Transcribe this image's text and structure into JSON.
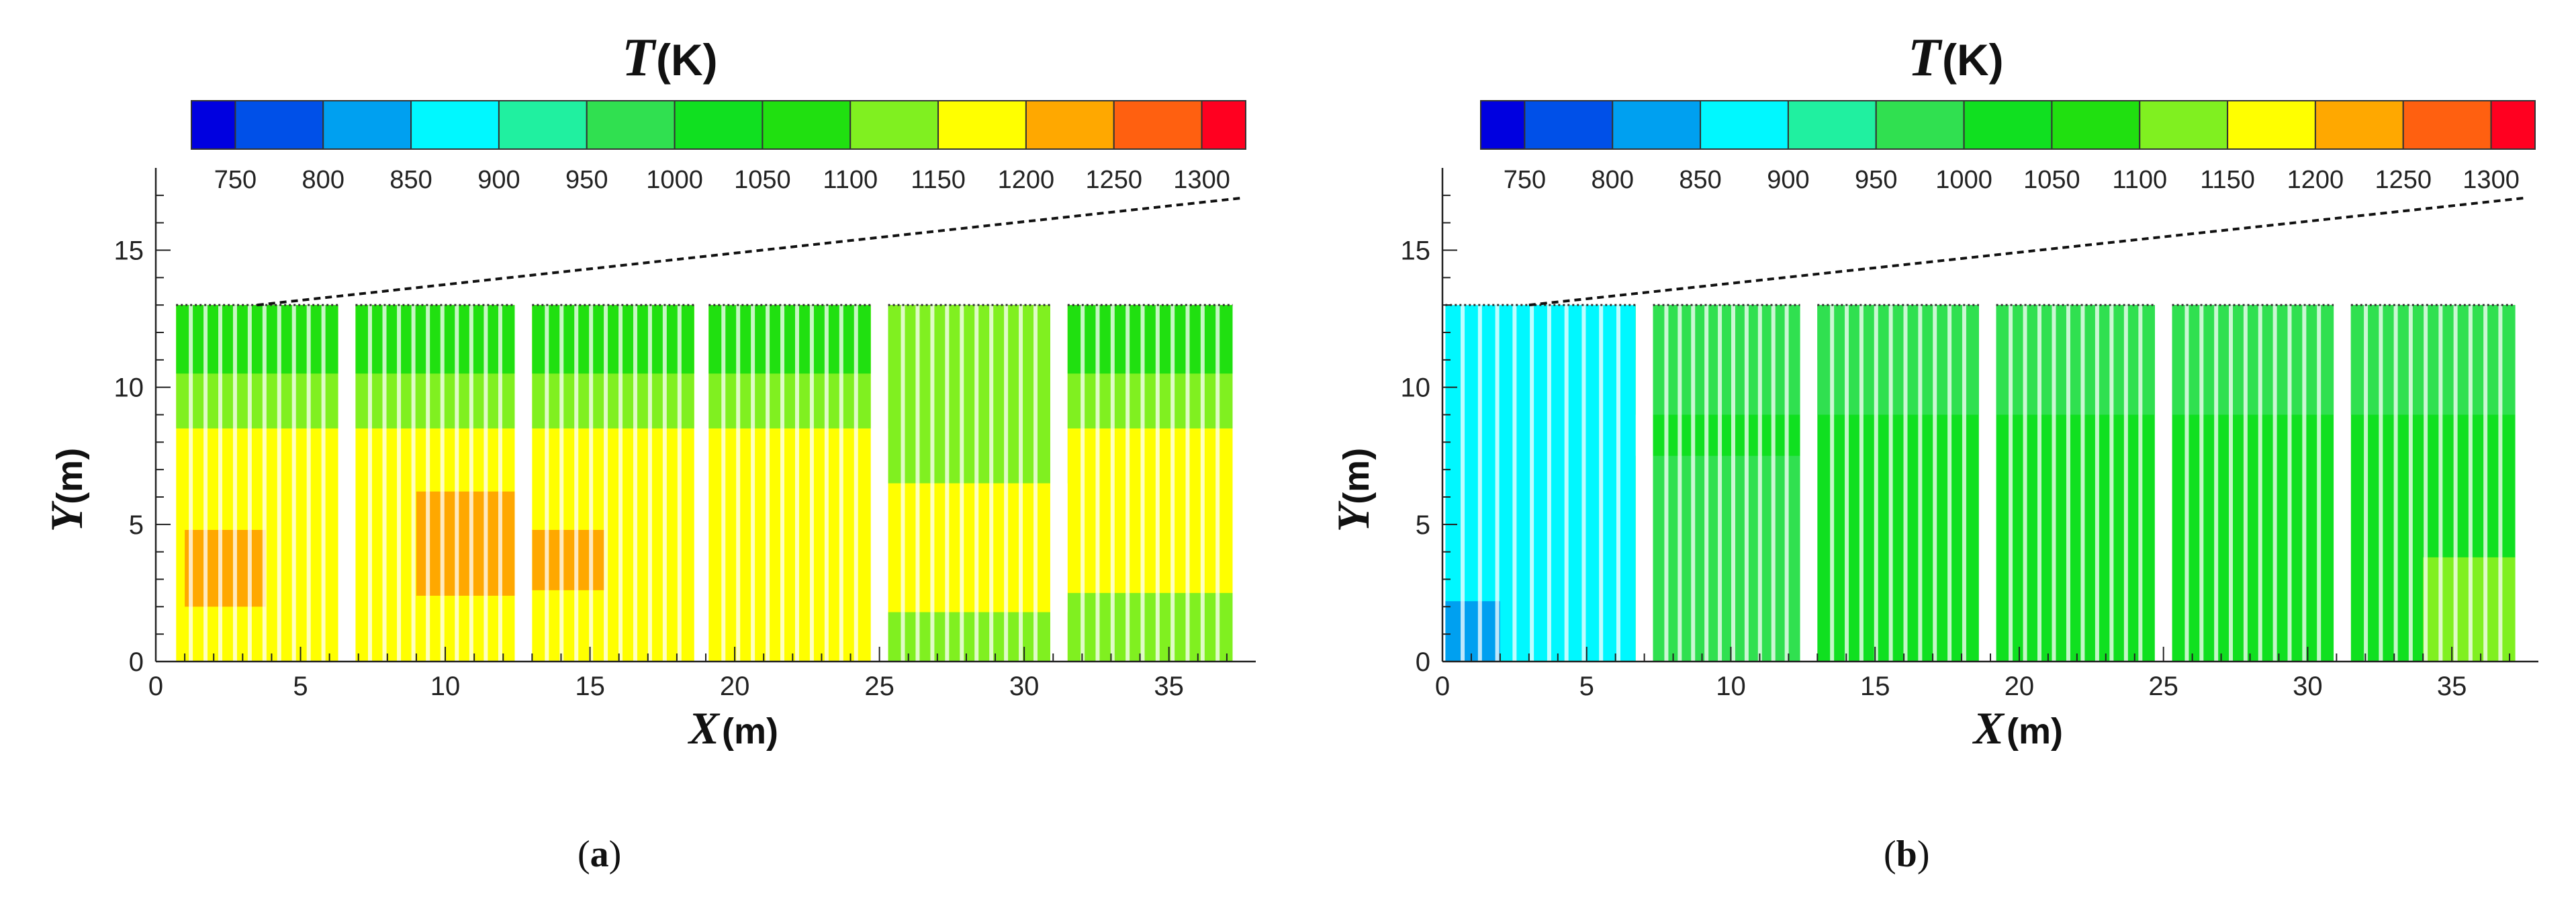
{
  "chart_data": [
    {
      "type": "heatmap",
      "panel_label": "a",
      "colorbar": {
        "title": "T",
        "unit": "(K)",
        "ticks": [
          "750",
          "800",
          "850",
          "900",
          "950",
          "1000",
          "1050",
          "1100",
          "1150",
          "1200",
          "1250",
          "1300"
        ],
        "bands": [
          {
            "min": 700,
            "max": 725,
            "color": "#0000e0"
          },
          {
            "min": 725,
            "max": 775,
            "color": "#0050e8"
          },
          {
            "min": 775,
            "max": 825,
            "color": "#00a0f0"
          },
          {
            "min": 825,
            "max": 875,
            "color": "#00f8ff"
          },
          {
            "min": 875,
            "max": 925,
            "color": "#20f0a0"
          },
          {
            "min": 925,
            "max": 975,
            "color": "#30e050"
          },
          {
            "min": 975,
            "max": 1025,
            "color": "#10e020"
          },
          {
            "min": 1025,
            "max": 1075,
            "color": "#20e010"
          },
          {
            "min": 1075,
            "max": 1125,
            "color": "#80f020"
          },
          {
            "min": 1125,
            "max": 1175,
            "color": "#ffff00"
          },
          {
            "min": 1175,
            "max": 1225,
            "color": "#ffa800"
          },
          {
            "min": 1225,
            "max": 1275,
            "color": "#ff6010"
          },
          {
            "min": 1275,
            "max": 1300,
            "color": "#ff0020"
          }
        ]
      },
      "x_axis": {
        "var": "X",
        "unit": "(m)",
        "range": [
          0,
          38
        ],
        "ticks": [
          "0",
          "5",
          "10",
          "15",
          "20",
          "25",
          "30",
          "35"
        ]
      },
      "y_axis": {
        "var": "Y",
        "unit": "(m)",
        "range": [
          0,
          18
        ],
        "ticks": [
          "0",
          "5",
          "10",
          "15"
        ]
      },
      "rack_segments_x": [
        [
          0.7,
          6.3
        ],
        [
          6.9,
          12.4
        ],
        [
          13.0,
          18.6
        ],
        [
          19.1,
          24.7
        ],
        [
          25.3,
          30.9
        ],
        [
          31.5,
          37.2
        ]
      ],
      "rack_top_y": 13,
      "roof_line": {
        "x": [
          3.5,
          37.5
        ],
        "y": [
          13.0,
          16.9
        ]
      },
      "zones": [
        {
          "x_range": [
            0.7,
            37.2
          ],
          "y_range": [
            0,
            13
          ],
          "temp": 1160
        },
        {
          "x_range": [
            0.7,
            37.2
          ],
          "y_range": [
            8.5,
            13
          ],
          "temp": 1100
        },
        {
          "x_range": [
            0.7,
            37.2
          ],
          "y_range": [
            10.5,
            13
          ],
          "temp": 1060
        },
        {
          "x_range": [
            25.3,
            31.5
          ],
          "y_range": [
            6.5,
            13
          ],
          "temp": 1075
        },
        {
          "x_range": [
            25.3,
            31.5
          ],
          "y_range": [
            0,
            1.8
          ],
          "temp": 1100
        },
        {
          "x_range": [
            31.5,
            37.2
          ],
          "y_range": [
            0,
            2.5
          ],
          "temp": 1120
        },
        {
          "x_range": [
            1.0,
            3.8
          ],
          "y_range": [
            2.0,
            4.8
          ],
          "temp": 1200
        },
        {
          "x_range": [
            9.0,
            12.5
          ],
          "y_range": [
            2.4,
            6.2
          ],
          "temp": 1200
        },
        {
          "x_range": [
            13.0,
            15.5
          ],
          "y_range": [
            2.6,
            4.8
          ],
          "temp": 1200
        }
      ]
    },
    {
      "type": "heatmap",
      "panel_label": "b",
      "colorbar": {
        "title": "T",
        "unit": "(K)",
        "ticks": [
          "750",
          "800",
          "850",
          "900",
          "950",
          "1000",
          "1050",
          "1100",
          "1150",
          "1200",
          "1250",
          "1300"
        ],
        "bands": [
          {
            "min": 700,
            "max": 725,
            "color": "#0000e0"
          },
          {
            "min": 725,
            "max": 775,
            "color": "#0050e8"
          },
          {
            "min": 775,
            "max": 825,
            "color": "#00a0f0"
          },
          {
            "min": 825,
            "max": 875,
            "color": "#00f8ff"
          },
          {
            "min": 875,
            "max": 925,
            "color": "#20f0a0"
          },
          {
            "min": 925,
            "max": 975,
            "color": "#30e050"
          },
          {
            "min": 975,
            "max": 1025,
            "color": "#10e020"
          },
          {
            "min": 1025,
            "max": 1075,
            "color": "#20e010"
          },
          {
            "min": 1075,
            "max": 1125,
            "color": "#80f020"
          },
          {
            "min": 1125,
            "max": 1175,
            "color": "#ffff00"
          },
          {
            "min": 1175,
            "max": 1225,
            "color": "#ffa800"
          },
          {
            "min": 1225,
            "max": 1275,
            "color": "#ff6010"
          },
          {
            "min": 1275,
            "max": 1300,
            "color": "#ff0020"
          }
        ]
      },
      "x_axis": {
        "var": "X",
        "unit": "(m)",
        "range": [
          0,
          38
        ],
        "ticks": [
          "0",
          "5",
          "10",
          "15",
          "20",
          "25",
          "30",
          "35"
        ]
      },
      "y_axis": {
        "var": "Y",
        "unit": "(m)",
        "range": [
          0,
          18
        ],
        "ticks": [
          "0",
          "5",
          "10",
          "15"
        ]
      },
      "rack_segments_x": [
        [
          0.1,
          6.7
        ],
        [
          7.3,
          12.4
        ],
        [
          13.0,
          18.6
        ],
        [
          19.2,
          24.7
        ],
        [
          25.3,
          30.9
        ],
        [
          31.5,
          37.2
        ]
      ],
      "rack_top_y": 13,
      "roof_line": {
        "x": [
          3.0,
          37.5
        ],
        "y": [
          13.0,
          16.9
        ]
      },
      "zones": [
        {
          "x_range": [
            0.1,
            6.7
          ],
          "y_range": [
            0,
            13
          ],
          "temp": 870
        },
        {
          "x_range": [
            6.7,
            37.2
          ],
          "y_range": [
            0,
            13
          ],
          "temp": 1000
        },
        {
          "x_range": [
            6.7,
            37.2
          ],
          "y_range": [
            9.0,
            13
          ],
          "temp": 950
        },
        {
          "x_range": [
            6.7,
            37.2
          ],
          "y_range": [
            11.0,
            13
          ],
          "temp": 930
        },
        {
          "x_range": [
            6.7,
            12.4
          ],
          "y_range": [
            0,
            7.5
          ],
          "temp": 960
        },
        {
          "x_range": [
            0.1,
            2.0
          ],
          "y_range": [
            0,
            2.2
          ],
          "temp": 790
        },
        {
          "x_range": [
            34.0,
            37.2
          ],
          "y_range": [
            0,
            3.8
          ],
          "temp": 1110
        }
      ]
    }
  ]
}
